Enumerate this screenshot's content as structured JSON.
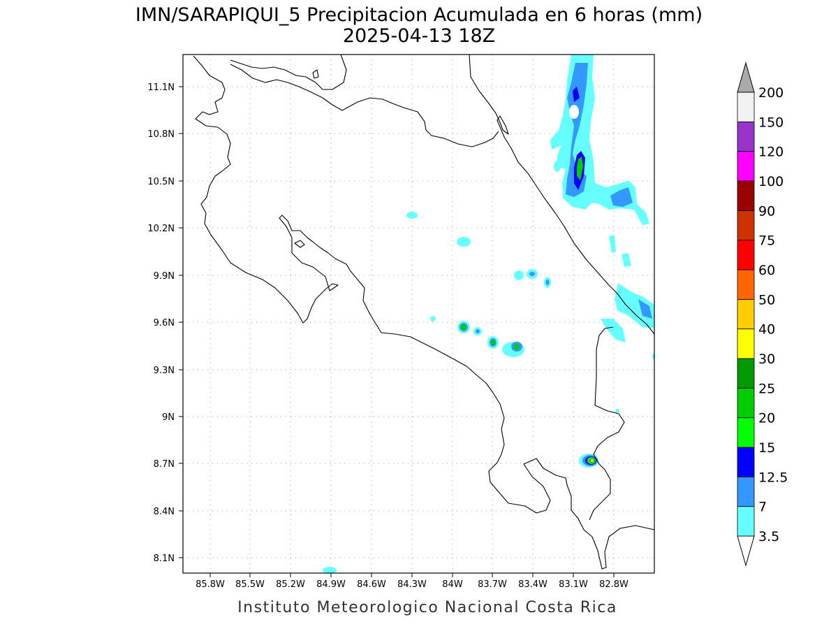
{
  "map": {
    "title_line1": "IMN/SARAPIQUI_5 Precipitacion Acumulada en 6 horas (mm)",
    "title_line2": "2025-04-13 18Z",
    "footer": "Instituto Meteorologico Nacional Costa Rica",
    "lon_labels": [
      "85.8W",
      "85.5W",
      "85.2W",
      "84.9W",
      "84.6W",
      "84.3W",
      "84W",
      "83.7W",
      "83.4W",
      "83.1W",
      "82.8W"
    ],
    "lat_labels": [
      "11.1N",
      "10.8N",
      "10.5N",
      "10.2N",
      "9.9N",
      "9.6N",
      "9.3N",
      "9N",
      "8.7N",
      "8.4N",
      "8.1N"
    ]
  },
  "colorbar": {
    "levels": [
      "3.5",
      "7",
      "12.5",
      "15",
      "20",
      "25",
      "30",
      "40",
      "50",
      "60",
      "75",
      "90",
      "100",
      "120",
      "150",
      "200"
    ],
    "colors": [
      "#ffffff",
      "#66ffff",
      "#3399ff",
      "#0000ff",
      "#00ff00",
      "#00cc00",
      "#009900",
      "#ffff00",
      "#ffcc00",
      "#ff6600",
      "#ff0000",
      "#cc3300",
      "#990000",
      "#ff00ff",
      "#9933cc",
      "#f2f2f2",
      "#aaaaaa"
    ]
  }
}
